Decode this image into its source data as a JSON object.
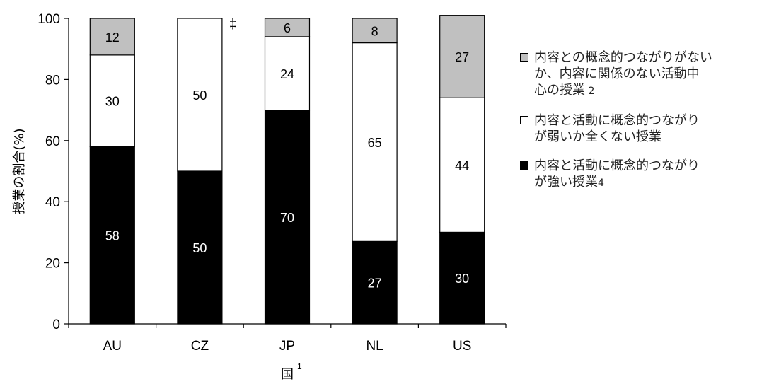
{
  "chart_data": {
    "type": "bar",
    "stacked": true,
    "categories": [
      "AU",
      "CZ",
      "JP",
      "NL",
      "US"
    ],
    "series": [
      {
        "name": "内容と活動に概念的つながりが強い授業",
        "note": "4",
        "color": "#000000",
        "label_color": "#ffffff",
        "values": [
          58,
          50,
          70,
          27,
          30
        ]
      },
      {
        "name": "内容と活動に概念的つながりが弱いか全くない授業",
        "color": "#ffffff",
        "label_color": "#000000",
        "values": [
          30,
          50,
          24,
          65,
          44
        ]
      },
      {
        "name": "内容との概念的つながりがないか、内容に関係のない活動中心の授業",
        "note": "2",
        "color": "#c0c0c0",
        "label_color": "#000000",
        "values": [
          12,
          null,
          6,
          8,
          27
        ]
      }
    ],
    "bar_tops": [
      100,
      100,
      100,
      100,
      101
    ],
    "ylim": [
      0,
      100
    ],
    "yticks": [
      0,
      20,
      40,
      60,
      80,
      100
    ],
    "ylabel": "授業の割合(%)",
    "xlabel": "国",
    "xlabel_sup": "1",
    "annotations": [
      {
        "category": "CZ",
        "text": "‡"
      }
    ],
    "grid": false,
    "legend_position": "right"
  },
  "legend": [
    {
      "text": "内容との概念的つながりがない\nか、内容に関係のない活動中\n心の授業",
      "note": " 2",
      "color": "#c0c0c0"
    },
    {
      "text": "内容と活動に概念的つながり\nが弱いか全くない授業",
      "note": "",
      "color": "#ffffff"
    },
    {
      "text": "内容と活動に概念的つながり\nが強い授業",
      "note": "4",
      "color": "#000000"
    }
  ]
}
